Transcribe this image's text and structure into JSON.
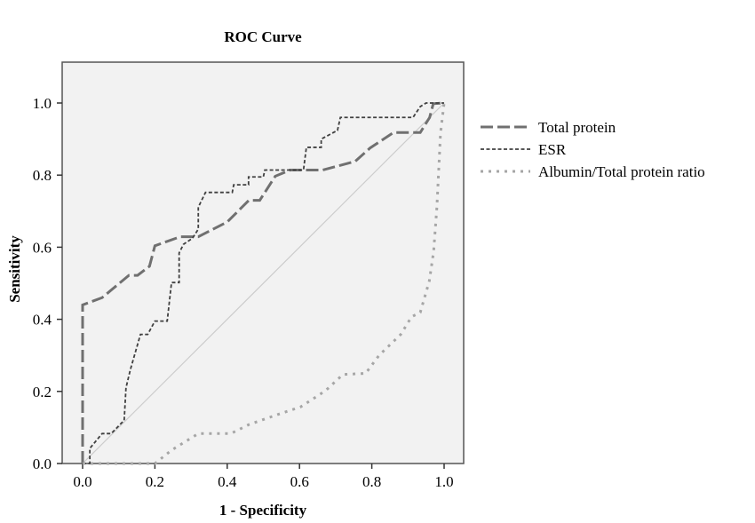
{
  "chart_data": {
    "type": "line",
    "title": "ROC Curve",
    "xlabel": "1 - Specificity",
    "ylabel": "Sensitivity",
    "xlim": [
      0,
      1
    ],
    "ylim": [
      0,
      1
    ],
    "xticks": [
      "0.0",
      "0.2",
      "0.4",
      "0.6",
      "0.8",
      "1.0"
    ],
    "yticks": [
      "0.0",
      "0.2",
      "0.4",
      "0.6",
      "0.8",
      "1.0"
    ],
    "grid": false,
    "legend_position": "right",
    "background": "#f2f2f2",
    "reference_line": {
      "x": [
        0,
        1
      ],
      "y": [
        0,
        1
      ],
      "color": "#cccccc"
    },
    "series": [
      {
        "name": "Total protein",
        "style": "long-dash",
        "color": "#707070",
        "x": [
          0,
          0,
          0.054,
          0.128,
          0.152,
          0.185,
          0.2,
          0.27,
          0.32,
          0.4,
          0.46,
          0.49,
          0.533,
          0.574,
          0.664,
          0.754,
          0.795,
          0.86,
          0.934,
          0.96,
          0.97,
          1
        ],
        "y": [
          0,
          0.44,
          0.46,
          0.522,
          0.522,
          0.547,
          0.604,
          0.629,
          0.629,
          0.67,
          0.73,
          0.73,
          0.797,
          0.814,
          0.814,
          0.838,
          0.875,
          0.918,
          0.918,
          0.96,
          0.998,
          1
        ]
      },
      {
        "name": "ESR",
        "style": "short-dash",
        "color": "#404040",
        "x": [
          0,
          0.02,
          0.02,
          0.054,
          0.079,
          0.115,
          0.12,
          0.132,
          0.16,
          0.18,
          0.2,
          0.234,
          0.246,
          0.267,
          0.267,
          0.279,
          0.304,
          0.32,
          0.32,
          0.34,
          0.414,
          0.418,
          0.459,
          0.459,
          0.5,
          0.504,
          0.611,
          0.619,
          0.66,
          0.66,
          0.705,
          0.713,
          0.914,
          0.934,
          0.95,
          1
        ],
        "y": [
          0,
          0,
          0.042,
          0.083,
          0.083,
          0.12,
          0.21,
          0.26,
          0.358,
          0.358,
          0.395,
          0.395,
          0.502,
          0.502,
          0.584,
          0.608,
          0.625,
          0.65,
          0.711,
          0.752,
          0.752,
          0.773,
          0.773,
          0.795,
          0.795,
          0.814,
          0.814,
          0.877,
          0.877,
          0.9,
          0.924,
          0.96,
          0.96,
          0.99,
          1,
          1
        ]
      },
      {
        "name": "Albumin/Total protein ratio",
        "style": "dotted",
        "color": "#a6a6a6",
        "x": [
          0,
          0.2,
          0.246,
          0.32,
          0.41,
          0.46,
          0.54,
          0.603,
          0.672,
          0.72,
          0.783,
          0.82,
          0.88,
          0.91,
          0.934,
          0.959,
          0.971,
          0.98,
          0.984,
          0.99,
          1
        ],
        "y": [
          0,
          0,
          0.037,
          0.083,
          0.083,
          0.108,
          0.136,
          0.157,
          0.202,
          0.247,
          0.25,
          0.3,
          0.358,
          0.407,
          0.419,
          0.506,
          0.588,
          0.711,
          0.793,
          0.916,
          1
        ]
      }
    ]
  }
}
